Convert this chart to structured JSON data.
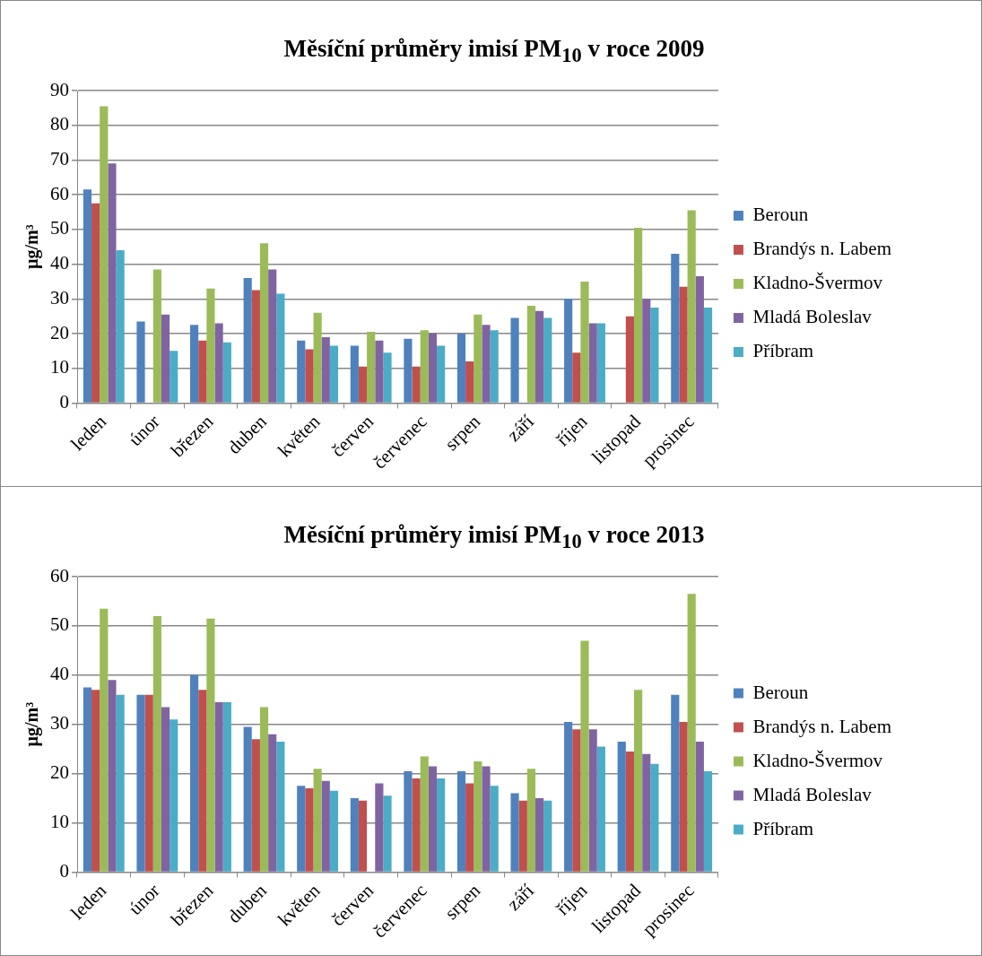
{
  "chart_data": [
    {
      "type": "bar",
      "title": "Měsíční průměry imisí PM$_{10}$ v roce 2009",
      "ylabel": "µg/m³",
      "categories": [
        "leden",
        "únor",
        "březen",
        "duben",
        "květen",
        "červen",
        "červenec",
        "srpen",
        "září",
        "říjen",
        "listopad",
        "prosinec"
      ],
      "series": [
        {
          "name": "Beroun",
          "color": "#4f81bd",
          "values": [
            61.5,
            23.5,
            22.5,
            36,
            18,
            16.5,
            18.5,
            20,
            24.5,
            30,
            null,
            43
          ]
        },
        {
          "name": "Brandýs n. Labem",
          "color": "#c0504d",
          "values": [
            57.5,
            null,
            18,
            32.5,
            15.5,
            10.5,
            10.5,
            12,
            null,
            14.5,
            25,
            33.5
          ]
        },
        {
          "name": "Kladno-Švermov",
          "color": "#9bbb59",
          "values": [
            85.5,
            38.5,
            33,
            46,
            26,
            20.5,
            21,
            25.5,
            28,
            35,
            50.5,
            55.5
          ]
        },
        {
          "name": "Mladá Boleslav",
          "color": "#8064a2",
          "values": [
            69,
            25.5,
            23,
            38.5,
            19,
            18,
            20,
            22.5,
            26.5,
            23,
            30,
            36.5
          ]
        },
        {
          "name": "Příbram",
          "color": "#4bacc6",
          "values": [
            44,
            15,
            17.5,
            31.5,
            16.5,
            14.5,
            16.5,
            21,
            24.5,
            23,
            27.5,
            27.5
          ]
        }
      ],
      "ylim": [
        0,
        90
      ],
      "yticks": [
        0,
        10,
        20,
        30,
        40,
        50,
        60,
        70,
        80,
        90
      ],
      "grid": "y",
      "legend": "right"
    },
    {
      "type": "bar",
      "title": "Měsíční průměry imisí PM$_{10}$ v roce 2013",
      "ylabel": "µg/m³",
      "categories": [
        "leden",
        "únor",
        "březen",
        "duben",
        "květen",
        "červen",
        "červenec",
        "srpen",
        "září",
        "říjen",
        "listopad",
        "prosinec"
      ],
      "series": [
        {
          "name": "Beroun",
          "color": "#4f81bd",
          "values": [
            37.5,
            36,
            40,
            29.5,
            17.5,
            15,
            20.5,
            20.5,
            16,
            30.5,
            26.5,
            36
          ]
        },
        {
          "name": "Brandýs n. Labem",
          "color": "#c0504d",
          "values": [
            37,
            36,
            37,
            27,
            17,
            14.5,
            19,
            18,
            14.5,
            29,
            24.5,
            30.5
          ]
        },
        {
          "name": "Kladno-Švermov",
          "color": "#9bbb59",
          "values": [
            53.5,
            52,
            51.5,
            33.5,
            21,
            null,
            23.5,
            22.5,
            21,
            47,
            37,
            56.5
          ]
        },
        {
          "name": "Mladá Boleslav",
          "color": "#8064a2",
          "values": [
            39,
            33.5,
            34.5,
            28,
            18.5,
            18,
            21.5,
            21.5,
            15,
            29,
            24,
            26.5
          ]
        },
        {
          "name": "Příbram",
          "color": "#4bacc6",
          "values": [
            36,
            31,
            34.5,
            26.5,
            16.5,
            15.5,
            19,
            17.5,
            14.5,
            25.5,
            22,
            20.5
          ]
        }
      ],
      "ylim": [
        0,
        60
      ],
      "yticks": [
        0,
        10,
        20,
        30,
        40,
        50,
        60
      ],
      "grid": "y",
      "legend": "right"
    }
  ]
}
